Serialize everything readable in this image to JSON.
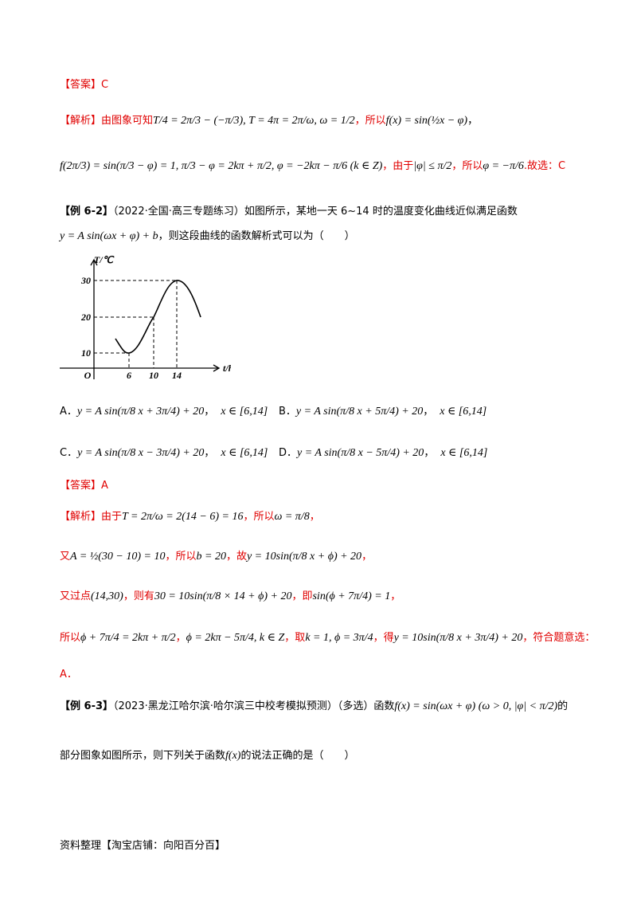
{
  "lines": [
    [
      "【答案】",
      "C"
    ],
    [
      "【解析】由图象可知",
      "T/4 = 2π/3 − (−π/3), T = 4π = 2π/ω, ω = 1/2",
      "，所以",
      "f(x) = sin(½x − φ)",
      "，"
    ],
    [
      "f(2π/3) = sin(π/3 − φ) = 1, π/3 − φ = 2kπ + π/2, φ = −2kπ − π/6 (k ∈ Z)",
      "，由于",
      "|φ| ≤ π/2",
      "，所以",
      "φ = −π/6",
      ".故选：C"
    ],
    [
      "【例 6-2】",
      "（2022·全国·高三专题练习）如图所示，某地一天 6~14 时的温度变化曲线近似满足函数"
    ],
    [
      "y = A sin(ωx + φ) + b",
      "，则这段曲线的函数解析式可以为（　　）"
    ],
    [
      "【答案】A"
    ],
    [
      "【解析】由于",
      "T = 2π/ω = 2(14 − 6) = 16",
      "，所以",
      "ω = π/8",
      "，"
    ],
    [
      "又",
      "A = ½(30 − 10) = 10",
      "，所以",
      "b = 20",
      "，故",
      "y = 10sin(π/8 x + ϕ) + 20",
      "，"
    ],
    [
      "又过点",
      "(14,30)",
      "，则有",
      "30 = 10sin(π/8 × 14 + ϕ) + 20",
      "，即",
      "sin(ϕ + 7π/4) = 1",
      "，"
    ],
    [
      "所以",
      "ϕ + 7π/4 = 2kπ + π/2",
      "，",
      "ϕ = 2kπ − 5π/4, k ∈ Z",
      "，取",
      "k = 1, ϕ = 3π/4",
      "，得",
      "y = 10sin(π/8 x + 3π/4) + 20",
      "，符合题意选："
    ],
    [
      "A．"
    ],
    [
      "【例 6-3】",
      "（2023·黑龙江哈尔滨·哈尔滨三中校考模拟预测）（多选）函数",
      "f(x) = sin(ωx + φ) (ω > 0, |φ| < π/2)",
      "的"
    ],
    [
      "部分图象如图所示，则下列关于函数",
      "f(x)",
      "的说法正确的是（　　）"
    ]
  ],
  "options": [
    [
      "A．",
      "y = A sin(π/8 x + 3π/4) + 20",
      "，",
      "x ∈ [6,14]"
    ],
    [
      "B．",
      "y = A sin(π/8 x + 5π/4) + 20",
      "，",
      "x ∈ [6,14]"
    ],
    [
      "C．",
      "y = A sin(π/8 x − 3π/4) + 20",
      "，",
      "x ∈ [6,14]"
    ],
    [
      "D．",
      "y = A sin(π/8 x − 5π/4) + 20",
      "，",
      "x ∈ [6,14]"
    ]
  ],
  "figure": {
    "y_label": "T/℃",
    "x_label": "t/h",
    "origin": "O",
    "y_ticks": [
      "30",
      "20",
      "10"
    ],
    "x_ticks": [
      "6",
      "10",
      "14"
    ]
  },
  "footer": "资料整理【淘宝店铺：向阳百分百】"
}
